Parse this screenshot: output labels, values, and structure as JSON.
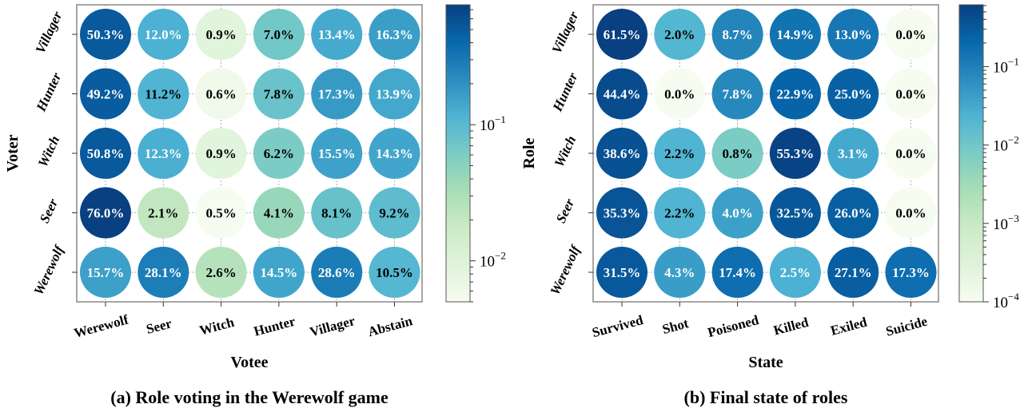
{
  "colormap": [
    "#f7fcf0",
    "#e0f3db",
    "#ccebc5",
    "#a8ddb5",
    "#7bccc4",
    "#4eb3d3",
    "#2b8cbe",
    "#0868ac",
    "#084081"
  ],
  "chart_data": [
    {
      "type": "heatmap",
      "caption": "(a) Role voting in the Werewolf game",
      "xlabel": "Votee",
      "ylabel": "Voter",
      "x_categories": [
        "Werewolf",
        "Seer",
        "Witch",
        "Hunter",
        "Villager",
        "Abstain"
      ],
      "y_categories": [
        "Villager",
        "Hunter",
        "Witch",
        "Seer",
        "Werewolf"
      ],
      "values": [
        [
          50.3,
          12.0,
          0.9,
          7.0,
          13.4,
          16.3
        ],
        [
          49.2,
          11.2,
          0.6,
          7.8,
          17.3,
          13.9
        ],
        [
          50.8,
          12.3,
          0.9,
          6.2,
          15.5,
          14.3
        ],
        [
          76.0,
          2.1,
          0.5,
          4.1,
          8.1,
          9.2
        ],
        [
          15.7,
          28.1,
          2.6,
          14.5,
          28.6,
          10.5
        ]
      ],
      "labels": [
        [
          "50.3%",
          "12.0%",
          "0.9%",
          "7.0%",
          "13.4%",
          "16.3%"
        ],
        [
          "49.2%",
          "11.2%",
          "0.6%",
          "7.8%",
          "17.3%",
          "13.9%"
        ],
        [
          "50.8%",
          "12.3%",
          "0.9%",
          "6.2%",
          "15.5%",
          "14.3%"
        ],
        [
          "76.0%",
          "2.1%",
          "0.5%",
          "4.1%",
          "8.1%",
          "9.2%"
        ],
        [
          "15.7%",
          "28.1%",
          "2.6%",
          "14.5%",
          "28.6%",
          "10.5%"
        ]
      ],
      "color_scale": "log",
      "color_range": [
        0.005,
        0.76
      ],
      "colorbar_ticks": [
        {
          "value": 0.01,
          "label_base": "10",
          "label_exp": "−2"
        },
        {
          "value": 0.1,
          "label_base": "10",
          "label_exp": "−1"
        }
      ]
    },
    {
      "type": "heatmap",
      "caption": "(b) Final state of roles",
      "xlabel": "State",
      "ylabel": "Role",
      "x_categories": [
        "Survived",
        "Shot",
        "Poisoned",
        "Killed",
        "Exiled",
        "Suicide"
      ],
      "y_categories": [
        "Villager",
        "Hunter",
        "Witch",
        "Seer",
        "Werewolf"
      ],
      "values": [
        [
          61.5,
          2.0,
          8.7,
          14.9,
          13.0,
          0.0
        ],
        [
          44.4,
          0.0,
          7.8,
          22.9,
          25.0,
          0.0
        ],
        [
          38.6,
          2.2,
          0.8,
          55.3,
          3.1,
          0.0
        ],
        [
          35.3,
          2.2,
          4.0,
          32.5,
          26.0,
          0.0
        ],
        [
          31.5,
          4.3,
          17.4,
          2.5,
          27.1,
          17.3
        ]
      ],
      "labels": [
        [
          "61.5%",
          "2.0%",
          "8.7%",
          "14.9%",
          "13.0%",
          "0.0%"
        ],
        [
          "44.4%",
          "0.0%",
          "7.8%",
          "22.9%",
          "25.0%",
          "0.0%"
        ],
        [
          "38.6%",
          "2.2%",
          "0.8%",
          "55.3%",
          "3.1%",
          "0.0%"
        ],
        [
          "35.3%",
          "2.2%",
          "4.0%",
          "32.5%",
          "26.0%",
          "0.0%"
        ],
        [
          "31.5%",
          "4.3%",
          "17.4%",
          "2.5%",
          "27.1%",
          "17.3%"
        ]
      ],
      "color_scale": "log",
      "color_range": [
        0.0001,
        0.615
      ],
      "colorbar_ticks": [
        {
          "value": 0.0001,
          "label_base": "10",
          "label_exp": "−4"
        },
        {
          "value": 0.001,
          "label_base": "10",
          "label_exp": "−3"
        },
        {
          "value": 0.01,
          "label_base": "10",
          "label_exp": "−2"
        },
        {
          "value": 0.1,
          "label_base": "10",
          "label_exp": "−1"
        }
      ]
    }
  ]
}
